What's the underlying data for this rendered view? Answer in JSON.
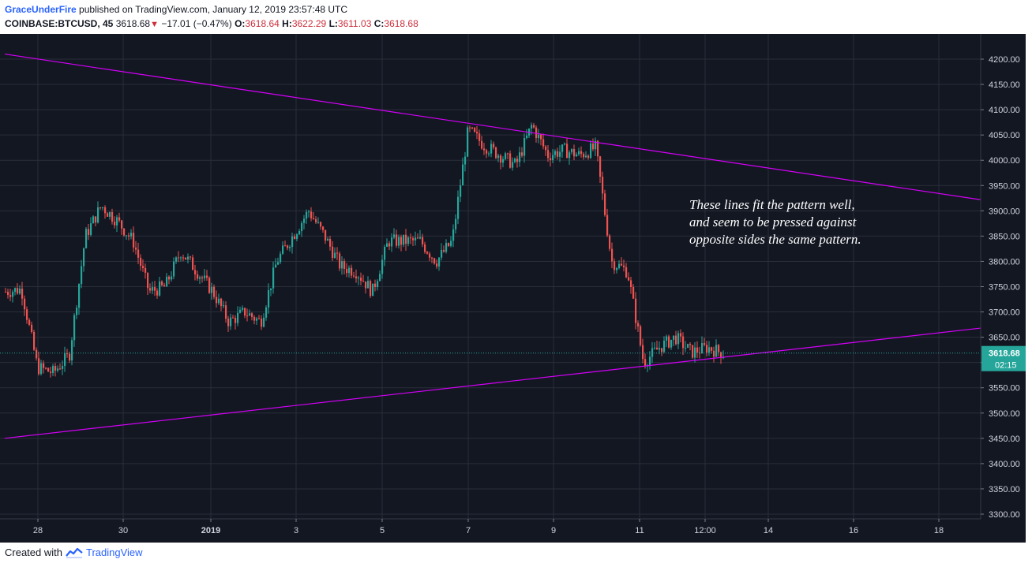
{
  "header": {
    "author": "GraceUnderFire",
    "published": "published on TradingView.com, January 12, 2019 23:57:48 UTC",
    "symbol": "COINBASE:BTCUSD, 45",
    "last": "3618.68",
    "change": "−17.01 (−0.47%)",
    "o_label": "O:",
    "o": "3618.64",
    "h_label": "H:",
    "h": "3622.29",
    "l_label": "L:",
    "l": "3611.03",
    "c_label": "C:",
    "c": "3618.68"
  },
  "footer": {
    "created_with": "Created with",
    "brand": "TradingView"
  },
  "colors": {
    "background": "#131722",
    "grid": "#2a2e39",
    "up": "#26a69a",
    "down": "#ef5350",
    "trendline": "#d500f9",
    "annotation": "#ffffff",
    "price_badge": "#26a69a"
  },
  "chart_data": {
    "type": "candlestick",
    "interval": "45",
    "ylim": [
      3280,
      4230
    ],
    "y_ticks": [
      3300,
      3350,
      3400,
      3450,
      3500,
      3550,
      3600,
      3650,
      3700,
      3750,
      3800,
      3850,
      3900,
      3950,
      4000,
      4050,
      4100,
      4150,
      4200
    ],
    "x_ticks": [
      "28",
      "30",
      "2019",
      "3",
      "5",
      "7",
      "9",
      "11",
      "12:00",
      "14",
      "16",
      "18"
    ],
    "last_price": "3618.68",
    "countdown": "02:15",
    "annotation": [
      "These lines fit the pattern well,",
      "and seem to be pressed against",
      "opposite sides the same pattern."
    ],
    "trendlines": [
      {
        "name": "upper",
        "from": [
          "Dec 27",
          4210
        ],
        "to": [
          "Jan 18 (right edge)",
          3922
        ]
      },
      {
        "name": "lower",
        "from": [
          "Dec 27",
          3450
        ],
        "to": [
          "Jan 18 (right edge)",
          3668
        ]
      }
    ],
    "price_path_approx": [
      [
        "Dec 27 00:00",
        3740
      ],
      [
        "Dec 27 12:00",
        3745
      ],
      [
        "Dec 27 18:00",
        3590
      ],
      [
        "Dec 28 00:00",
        3580
      ],
      [
        "Dec 28 12:00",
        3615
      ],
      [
        "Dec 28 18:00",
        3850
      ],
      [
        "Dec 29 00:00",
        3910
      ],
      [
        "Dec 29 12:00",
        3880
      ],
      [
        "Dec 29 18:00",
        3840
      ],
      [
        "Dec 30 00:00",
        3740
      ],
      [
        "Dec 30 06:00",
        3750
      ],
      [
        "Dec 30 12:00",
        3820
      ],
      [
        "Dec 31 00:00",
        3780
      ],
      [
        "Dec 31 12:00",
        3740
      ],
      [
        "Jan 1 00:00",
        3680
      ],
      [
        "Jan 1 12:00",
        3700
      ],
      [
        "Jan 2 00:00",
        3680
      ],
      [
        "Jan 2 06:00",
        3800
      ],
      [
        "Jan 2 18:00",
        3850
      ],
      [
        "Jan 3 00:00",
        3900
      ],
      [
        "Jan 3 12:00",
        3850
      ],
      [
        "Jan 4 00:00",
        3790
      ],
      [
        "Jan 4 12:00",
        3780
      ],
      [
        "Jan 5 00:00",
        3740
      ],
      [
        "Jan 5 06:00",
        3840
      ],
      [
        "Jan 5 18:00",
        3840
      ],
      [
        "Jan 6 00:00",
        3840
      ],
      [
        "Jan 6 12:00",
        3800
      ],
      [
        "Jan 6 18:00",
        3840
      ],
      [
        "Jan 6 20:00",
        4060
      ],
      [
        "Jan 7 12:00",
        4030
      ],
      [
        "Jan 8 00:00",
        4010
      ],
      [
        "Jan 8 12:00",
        3990
      ],
      [
        "Jan 8 18:00",
        4070
      ],
      [
        "Jan 9 00:00",
        4010
      ],
      [
        "Jan 9 12:00",
        4020
      ],
      [
        "Jan 10 00:00",
        4010
      ],
      [
        "Jan 10 06:00",
        4025
      ],
      [
        "Jan 10 12:00",
        3800
      ],
      [
        "Jan 10 18:00",
        3780
      ],
      [
        "Jan 11 00:00",
        3600
      ],
      [
        "Jan 11 12:00",
        3630
      ],
      [
        "Jan 12 00:00",
        3650
      ],
      [
        "Jan 12 06:00",
        3620
      ],
      [
        "Jan 12 12:00",
        3630
      ],
      [
        "Jan 12 18:00",
        3618
      ]
    ]
  }
}
